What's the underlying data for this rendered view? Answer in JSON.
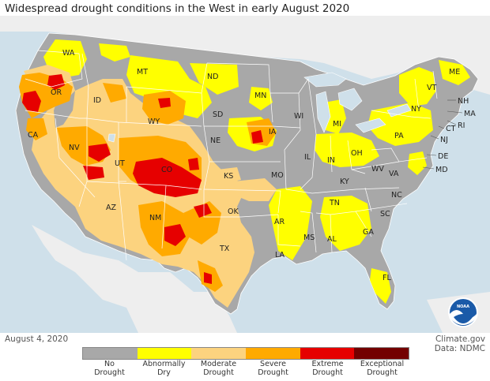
{
  "title": "Widespread drought conditions in the West in early August 2020",
  "date": "August 4, 2020",
  "credit": {
    "site": "Climate.gov",
    "data": "Data: NDMC"
  },
  "logo_text": "NOAA",
  "legend": [
    {
      "label_1": "No",
      "label_2": "Drought",
      "color": "#a8a8a8"
    },
    {
      "label_1": "Abnormally",
      "label_2": "Dry",
      "color": "#ffff00"
    },
    {
      "label_1": "Moderate",
      "label_2": "Drought",
      "color": "#fcd37f"
    },
    {
      "label_1": "Severe",
      "label_2": "Drought",
      "color": "#ffaa00"
    },
    {
      "label_1": "Extreme",
      "label_2": "Drought",
      "color": "#e60000"
    },
    {
      "label_1": "Exceptional",
      "label_2": "Drought",
      "color": "#730000"
    }
  ],
  "state_labels": {
    "wa": "WA",
    "or": "OR",
    "ca": "CA",
    "id": "ID",
    "nv": "NV",
    "mt": "MT",
    "wy": "WY",
    "ut": "UT",
    "az": "AZ",
    "co": "CO",
    "nm": "NM",
    "nd": "ND",
    "sd": "SD",
    "ne": "NE",
    "ks": "KS",
    "ok": "OK",
    "tx": "TX",
    "mn": "MN",
    "ia": "IA",
    "mo": "MO",
    "ar": "AR",
    "la": "LA",
    "wi": "WI",
    "il": "IL",
    "mi": "MI",
    "in": "IN",
    "oh": "OH",
    "ky": "KY",
    "tn": "TN",
    "ms": "MS",
    "al": "AL",
    "ga": "GA",
    "fl": "FL",
    "sc": "SC",
    "nc": "NC",
    "va": "VA",
    "wv": "WV",
    "pa": "PA",
    "ny": "NY",
    "vt": "VT",
    "me": "ME",
    "nh": "NH",
    "ma": "MA",
    "ri": "RI",
    "ct": "CT",
    "nj": "NJ",
    "de": "DE",
    "md": "MD"
  }
}
